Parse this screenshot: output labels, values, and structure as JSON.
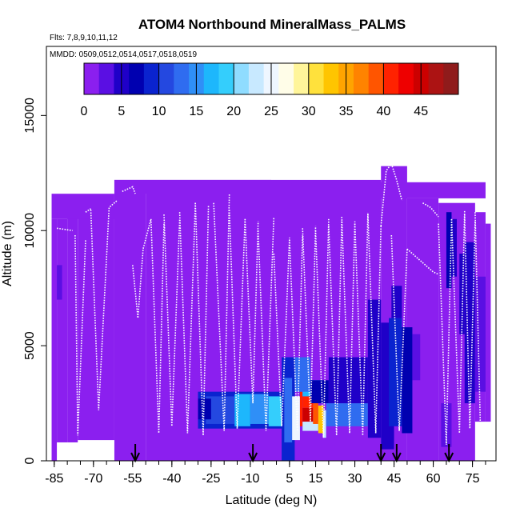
{
  "chart_data": {
    "type": "heatmap",
    "title": "ATOM4 Northbound MineralMass_PALMS",
    "flights_label": "Flts: 7,8,9,10,11,12",
    "dates_label": "MMDD: 0509,0512,0514,0517,0518,0519",
    "xlabel": "Latitude (deg N)",
    "ylabel": "Altitude (m)",
    "xlim": [
      -88,
      84
    ],
    "ylim": [
      0,
      18000
    ],
    "x_ticks": [
      -85,
      -70,
      -55,
      -40,
      -25,
      -10,
      5,
      15,
      30,
      45,
      60,
      75
    ],
    "x_minor_step": 5,
    "y_ticks": [
      0,
      5000,
      10000,
      15000
    ],
    "colorbar": {
      "min": 0,
      "max": 50,
      "ticks": [
        0,
        5,
        10,
        15,
        20,
        25,
        30,
        35,
        40,
        45
      ],
      "colors": [
        "#8b1fef",
        "#5a0fe3",
        "#1f00c8",
        "#0000b0",
        "#0a23cf",
        "#2448e0",
        "#2f6cf0",
        "#2f8ff7",
        "#1db7fc",
        "#34cefc",
        "#8fdcff",
        "#c8e9ff",
        "#eef6ff",
        "#fffde8",
        "#fff59a",
        "#ffe13c",
        "#ffc500",
        "#ffa400",
        "#ff8300",
        "#ff5500",
        "#ff2200",
        "#ee0000",
        "#cc0000",
        "#ac1313",
        "#8f1b1b"
      ]
    },
    "background_value": 1,
    "cells": [
      {
        "lat": [
          -62,
          -2
        ],
        "alt": [
          11600,
          12200
        ],
        "v": 1
      },
      {
        "lat": [
          -2,
          80
        ],
        "alt": [
          11400,
          12100
        ],
        "v": 1
      },
      {
        "lat": [
          -86,
          -62
        ],
        "alt": [
          10500,
          11600
        ],
        "v": 1
      },
      {
        "lat": [
          -30,
          2
        ],
        "alt": [
          1400,
          3000
        ],
        "v": 9
      },
      {
        "lat": [
          -27,
          -16
        ],
        "alt": [
          1600,
          2800
        ],
        "v": 11
      },
      {
        "lat": [
          -16,
          -10
        ],
        "alt": [
          1500,
          2900
        ],
        "v": 17
      },
      {
        "lat": [
          -10,
          -3
        ],
        "alt": [
          1600,
          2900
        ],
        "v": 14
      },
      {
        "lat": [
          -3,
          2
        ],
        "alt": [
          1500,
          2800
        ],
        "v": 19
      },
      {
        "lat": [
          2,
          7
        ],
        "alt": [
          0,
          4500
        ],
        "v": 8
      },
      {
        "lat": [
          3,
          6
        ],
        "alt": [
          800,
          3600
        ],
        "v": 13
      },
      {
        "lat": [
          6,
          9
        ],
        "alt": [
          900,
          2800
        ],
        "v": 24
      },
      {
        "lat": [
          9,
          10
        ],
        "alt": [
          1500,
          3000
        ],
        "v": 40
      },
      {
        "lat": [
          10,
          14
        ],
        "alt": [
          1700,
          2300
        ],
        "v": 44
      },
      {
        "lat": [
          10,
          14
        ],
        "alt": [
          2300,
          2800
        ],
        "v": 41
      },
      {
        "lat": [
          10,
          16
        ],
        "alt": [
          1300,
          1700
        ],
        "v": 22
      },
      {
        "lat": [
          14,
          16
        ],
        "alt": [
          1600,
          2600
        ],
        "v": 39
      },
      {
        "lat": [
          16,
          18
        ],
        "alt": [
          1200,
          2400
        ],
        "v": 33
      },
      {
        "lat": [
          18,
          19
        ],
        "alt": [
          1000,
          2200
        ],
        "v": 22
      },
      {
        "lat": [
          10,
          18
        ],
        "alt": [
          2800,
          3500
        ],
        "v": 17
      },
      {
        "lat": [
          7,
          13
        ],
        "alt": [
          3000,
          4500
        ],
        "v": 13
      },
      {
        "lat": [
          13,
          20
        ],
        "alt": [
          2500,
          3500
        ],
        "v": 6
      },
      {
        "lat": [
          19,
          35
        ],
        "alt": [
          1500,
          2500
        ],
        "v": 12
      },
      {
        "lat": [
          20,
          35
        ],
        "alt": [
          2500,
          4500
        ],
        "v": 5
      },
      {
        "lat": [
          35,
          40
        ],
        "alt": [
          1000,
          7000
        ],
        "v": 4
      },
      {
        "lat": [
          40,
          45
        ],
        "alt": [
          500,
          6000
        ],
        "v": 5
      },
      {
        "lat": [
          43,
          48
        ],
        "alt": [
          1500,
          6200
        ],
        "v": 8
      },
      {
        "lat": [
          48,
          52
        ],
        "alt": [
          1200,
          5800
        ],
        "v": 6
      },
      {
        "lat": [
          52,
          55
        ],
        "alt": [
          3500,
          5500
        ],
        "v": 3
      },
      {
        "lat": [
          44,
          48
        ],
        "alt": [
          6200,
          7600
        ],
        "v": 4
      },
      {
        "lat": [
          63,
          67
        ],
        "alt": [
          600,
          2500
        ],
        "v": 3
      },
      {
        "lat": [
          65,
          67
        ],
        "alt": [
          7500,
          10800
        ],
        "v": 6
      },
      {
        "lat": [
          67,
          69
        ],
        "alt": [
          8000,
          10500
        ],
        "v": 4
      },
      {
        "lat": [
          70,
          72
        ],
        "alt": [
          5500,
          9000
        ],
        "v": 5
      },
      {
        "lat": [
          72,
          76
        ],
        "alt": [
          2500,
          9500
        ],
        "v": 4
      },
      {
        "lat": [
          76,
          80
        ],
        "alt": [
          3000,
          8000
        ],
        "v": 3
      },
      {
        "lat": [
          -84,
          -82
        ],
        "alt": [
          7000,
          8500
        ],
        "v": 3
      },
      {
        "lat": [
          -30,
          -25
        ],
        "alt": [
          1800,
          2700
        ],
        "v": 6
      }
    ],
    "flight_tracks": [
      {
        "lat": [
          -84,
          -78
        ],
        "alt": [
          10100,
          10000
        ]
      },
      {
        "lat": [
          -77,
          -76,
          -73
        ],
        "alt": [
          9800,
          1100,
          9600
        ]
      },
      {
        "lat": [
          -73,
          -71
        ],
        "alt": [
          10800,
          10950
        ]
      },
      {
        "lat": [
          -71,
          -68,
          -64,
          -61
        ],
        "alt": [
          10900,
          2200,
          11000,
          11300
        ]
      },
      {
        "lat": [
          -59,
          -55,
          -54
        ],
        "alt": [
          11700,
          11900,
          11600
        ]
      },
      {
        "lat": [
          -55,
          -53,
          -51,
          -48
        ],
        "alt": [
          8500,
          6200,
          9200,
          10500
        ]
      },
      {
        "lat": [
          -48,
          -45,
          -43
        ],
        "alt": [
          10500,
          1200,
          10300
        ]
      },
      {
        "lat": [
          -43,
          -40,
          -37
        ],
        "alt": [
          10700,
          1500,
          10500
        ]
      },
      {
        "lat": [
          -37,
          -34,
          -31
        ],
        "alt": [
          10800,
          1200,
          11200
        ]
      },
      {
        "lat": [
          -31,
          -28,
          -26
        ],
        "alt": [
          11200,
          1100,
          11100
        ]
      },
      {
        "lat": [
          -24,
          -20,
          -18
        ],
        "alt": [
          11200,
          1300,
          11600
        ]
      },
      {
        "lat": [
          -18,
          -15,
          -12
        ],
        "alt": [
          10900,
          1400,
          10500
        ]
      },
      {
        "lat": [
          -12,
          -9,
          -7
        ],
        "alt": [
          10500,
          2500,
          10400
        ]
      },
      {
        "lat": [
          -7,
          -4,
          -1
        ],
        "alt": [
          10000,
          1300,
          10600
        ]
      },
      {
        "lat": [
          -1,
          2,
          5
        ],
        "alt": [
          9000,
          1500,
          9700
        ]
      },
      {
        "lat": [
          5,
          8,
          10
        ],
        "alt": [
          9600,
          1300,
          9800
        ]
      },
      {
        "lat": [
          10,
          13,
          15
        ],
        "alt": [
          10100,
          1700,
          10200
        ]
      },
      {
        "lat": [
          15,
          18,
          20
        ],
        "alt": [
          10000,
          1000,
          10500
        ]
      },
      {
        "lat": [
          20,
          23,
          25
        ],
        "alt": [
          10200,
          1100,
          10400
        ]
      },
      {
        "lat": [
          25,
          28,
          30
        ],
        "alt": [
          10600,
          1200,
          10400
        ]
      },
      {
        "lat": [
          30,
          33,
          35
        ],
        "alt": [
          10300,
          1100,
          10800
        ]
      },
      {
        "lat": [
          35,
          38,
          40
        ],
        "alt": [
          10700,
          1200,
          10200
        ]
      },
      {
        "lat": [
          40,
          42,
          44,
          46,
          48
        ],
        "alt": [
          10200,
          12600,
          12900,
          12200,
          11300
        ]
      },
      {
        "lat": [
          44,
          47,
          50
        ],
        "alt": [
          9800,
          1300,
          9200
        ]
      },
      {
        "lat": [
          50,
          55,
          60,
          62
        ],
        "alt": [
          9200,
          8700,
          8200,
          8100
        ]
      },
      {
        "lat": [
          56,
          59,
          62
        ],
        "alt": [
          11200,
          11000,
          10600
        ]
      },
      {
        "lat": [
          62,
          65,
          67
        ],
        "alt": [
          10300,
          700,
          10500
        ]
      },
      {
        "lat": [
          67,
          70,
          72
        ],
        "alt": [
          10500,
          1200,
          10900
        ]
      },
      {
        "lat": [
          72,
          74,
          76
        ],
        "alt": [
          10700,
          1400,
          10400
        ]
      },
      {
        "lat": [
          76,
          78
        ],
        "alt": [
          10800,
          1600
        ]
      }
    ],
    "arrows": [
      -54,
      -9,
      40,
      46,
      66
    ],
    "annotations": []
  }
}
